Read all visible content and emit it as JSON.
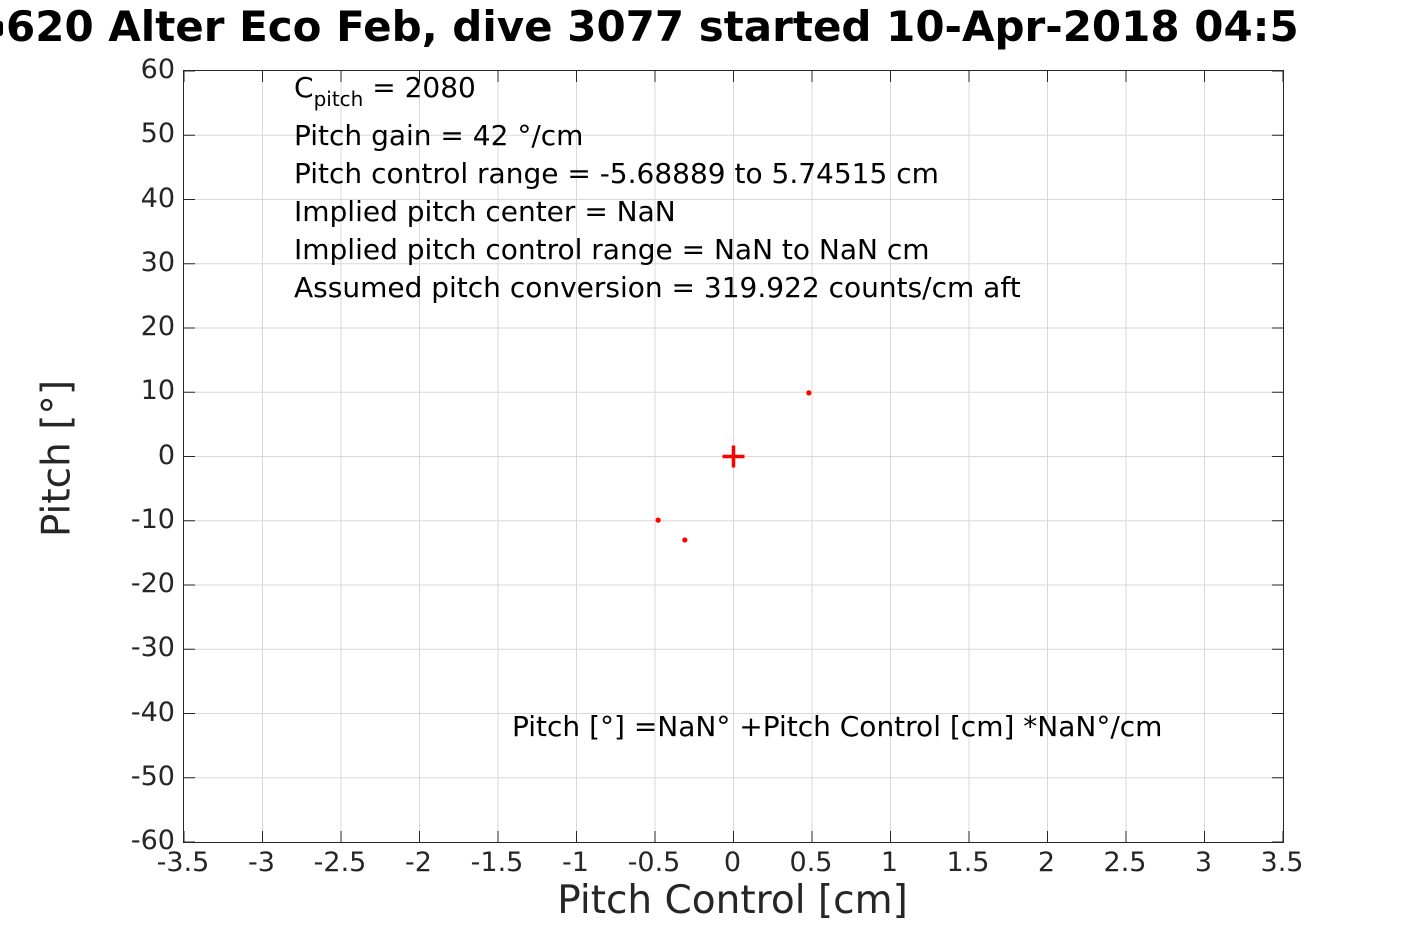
{
  "title": "620 Alter Eco Feb, dive 3077 started 10-Apr-2018 04:5",
  "annotations": {
    "cpitch_prefix": "C",
    "cpitch_sub": "pitch",
    "cpitch_suffix": " = 2080",
    "lines": [
      "Pitch gain = 42 °/cm",
      "Pitch control range = -5.68889 to 5.74515 cm",
      "Implied pitch center = NaN",
      "Implied pitch control range = NaN to NaN cm",
      "Assumed pitch conversion = 319.922 counts/cm aft"
    ],
    "fit_equation": "Pitch [°] =NaN° +Pitch Control [cm] *NaN°/cm"
  },
  "chart_data": {
    "type": "scatter",
    "title": "620 Alter Eco Feb, dive 3077 started 10-Apr-2018 04:5",
    "xlabel": "Pitch Control [cm]",
    "ylabel": "Pitch [°]",
    "xlim": [
      -3.5,
      3.5
    ],
    "ylim": [
      -60,
      60
    ],
    "grid": true,
    "xticks": [
      -3.5,
      -3,
      -2.5,
      -2,
      -1.5,
      -1,
      -0.5,
      0,
      0.5,
      1,
      1.5,
      2,
      2.5,
      3,
      3.5
    ],
    "xtick_labels": [
      "-3.5",
      "-3",
      "-2.5",
      "-2",
      "-1.5",
      "-1",
      "-0.5",
      "0",
      "0.5",
      "1",
      "1.5",
      "2",
      "2.5",
      "3",
      "3.5"
    ],
    "yticks": [
      -60,
      -50,
      -40,
      -30,
      -20,
      -10,
      0,
      10,
      20,
      30,
      40,
      50,
      60
    ],
    "ytick_labels": [
      "-60",
      "-50",
      "-40",
      "-30",
      "-20",
      "-10",
      "0",
      "10",
      "20",
      "30",
      "40",
      "50",
      "60"
    ],
    "series": [
      {
        "name": "pitch-vs-pitch-control-observations",
        "marker": "dot",
        "color": "#ff0000",
        "points": [
          [
            0.48,
            9.9
          ],
          [
            -0.48,
            -9.9
          ],
          [
            -0.31,
            -13.0
          ]
        ]
      },
      {
        "name": "pitch-center-marker",
        "marker": "plus",
        "color": "#ff0000",
        "points": [
          [
            0,
            0
          ]
        ]
      }
    ],
    "colors": {
      "grid": "#d9d9d9",
      "axis": "#262626",
      "marker": "#ff0000",
      "text": "#000000"
    }
  }
}
